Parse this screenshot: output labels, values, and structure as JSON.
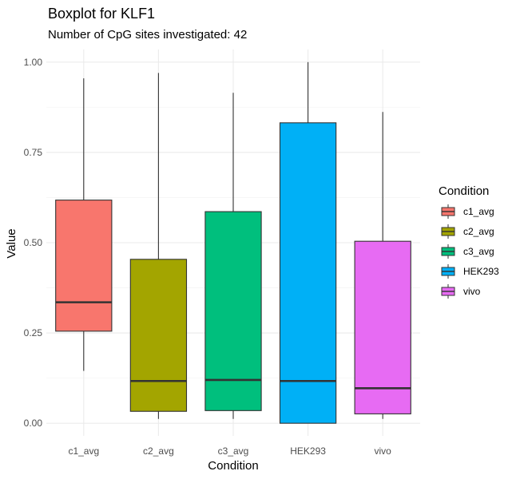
{
  "chart_data": {
    "type": "boxplot",
    "title": "Boxplot for KLF1",
    "subtitle": "Number of CpG sites investigated: 42",
    "xlabel": "Condition",
    "ylabel": "Value",
    "ylim": [
      -0.035,
      1.035
    ],
    "yticks": [
      0.0,
      0.25,
      0.5,
      0.75,
      1.0
    ],
    "ytick_labels": [
      "0.00",
      "0.25",
      "0.50",
      "0.75",
      "1.00"
    ],
    "grid": true,
    "legend": {
      "title": "Condition",
      "position": "right"
    },
    "categories": [
      "c1_avg",
      "c2_avg",
      "c3_avg",
      "HEK293",
      "vivo"
    ],
    "series": [
      {
        "name": "c1_avg",
        "color": "#F8766D",
        "min": 0.145,
        "q1": 0.255,
        "median": 0.335,
        "q3": 0.618,
        "max": 0.955
      },
      {
        "name": "c2_avg",
        "color": "#A3A500",
        "min": 0.012,
        "q1": 0.033,
        "median": 0.117,
        "q3": 0.454,
        "max": 0.97
      },
      {
        "name": "c3_avg",
        "color": "#00BF7D",
        "min": 0.012,
        "q1": 0.035,
        "median": 0.12,
        "q3": 0.586,
        "max": 0.915
      },
      {
        "name": "HEK293",
        "color": "#00B0F6",
        "min": 0.0,
        "q1": 0.0,
        "median": 0.117,
        "q3": 0.832,
        "max": 1.0
      },
      {
        "name": "vivo",
        "color": "#E76BF3",
        "min": 0.012,
        "q1": 0.026,
        "median": 0.097,
        "q3": 0.504,
        "max": 0.862
      }
    ]
  }
}
